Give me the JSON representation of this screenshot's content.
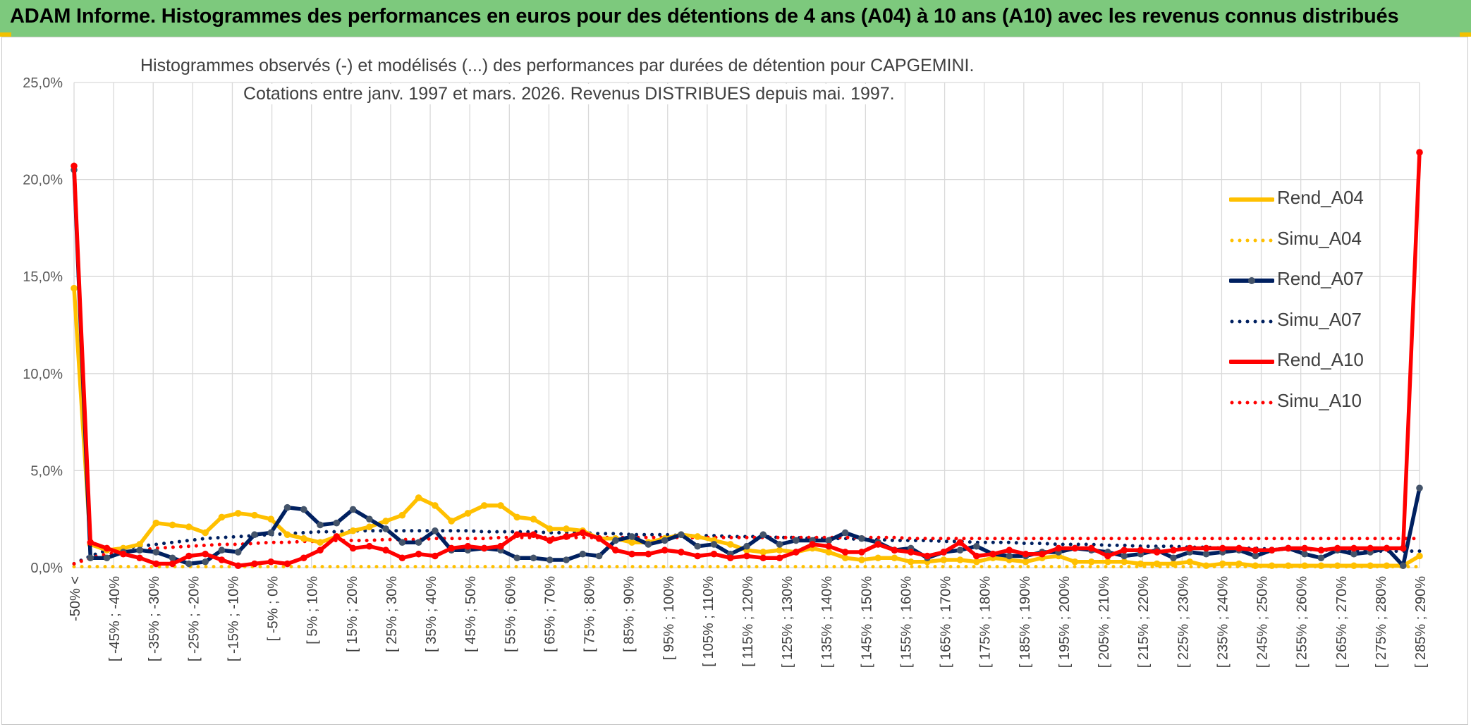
{
  "banner": {
    "title": "ADAM Informe. Histogrammes des performances en euros pour des détentions de 4 ans (A04) à 10 ans (A10) avec les revenus connus distribués"
  },
  "colors": {
    "banner_bg": "#7dc97d",
    "banner_accent": "#f2c100",
    "A04": "#ffc000",
    "A07": "#002060",
    "A07_marker": "#44546a",
    "A10": "#ff0000",
    "grid": "#d9d9d9",
    "text": "#404040"
  },
  "chart_data": {
    "type": "line",
    "title_line1": "Histogrammes observés (-) et modélisés (...) des performances par durées de détention pour CAPGEMINI.",
    "title_line2": "Cotations entre janv. 1997 et mars. 2026. Revenus DISTRIBUES depuis mai. 1997.",
    "ylim": [
      0,
      25
    ],
    "yticks": [
      "0,0%",
      "5,0%",
      "10,0%",
      "15,0%",
      "20,0%",
      "25,0%"
    ],
    "grid": true,
    "legend_position": "right",
    "x_labels": [
      "-50% <",
      "[ -45% ; -40%",
      "[ -35% ; -30%",
      "[ -25% ; -20%",
      "[ -15% ; -10%",
      "[ -5% ; 0%",
      "[ 5% ; 10%",
      "[ 15% ; 20%",
      "[ 25% ; 30%",
      "[ 35% ; 40%",
      "[ 45% ; 50%",
      "[ 55% ; 60%",
      "[ 65% ; 70%",
      "[ 75% ; 80%",
      "[ 85% ; 90%",
      "[ 95% ; 100%",
      "[ 105% ; 110%",
      "[ 115% ; 120%",
      "[ 125% ; 130%",
      "[ 135% ; 140%",
      "[ 145% ; 150%",
      "[ 155% ; 160%",
      "[ 165% ; 170%",
      "[ 175% ; 180%",
      "[ 185% ; 190%",
      "[ 195% ; 200%",
      "[ 205% ; 210%",
      "[ 215% ; 220%",
      "[ 225% ; 230%",
      "[ 235% ; 240%",
      "[ 245% ; 250%",
      "[ 255% ; 260%",
      "[ 265% ; 270%",
      "[ 275% ; 280%",
      "[ 285% ; 290%"
    ],
    "series": [
      {
        "name": "Rend_A04",
        "style": "solid",
        "color": "#ffc000",
        "values": [
          14.4,
          1.2,
          0.9,
          1.0,
          1.2,
          2.3,
          2.2,
          2.1,
          1.8,
          2.6,
          2.8,
          2.7,
          2.5,
          1.7,
          1.5,
          1.3,
          1.6,
          1.9,
          2.1,
          2.4,
          2.7,
          3.6,
          3.2,
          2.4,
          2.8,
          3.2,
          3.2,
          2.6,
          2.5,
          2.0,
          2.0,
          1.9,
          1.5,
          1.5,
          1.3,
          1.3,
          1.5,
          1.7,
          1.6,
          1.4,
          1.2,
          0.9,
          0.8,
          0.9,
          0.8,
          1.0,
          0.8,
          0.5,
          0.4,
          0.5,
          0.5,
          0.3,
          0.3,
          0.4,
          0.4,
          0.3,
          0.5,
          0.4,
          0.3,
          0.5,
          0.6,
          0.3,
          0.3,
          0.3,
          0.3,
          0.2,
          0.2,
          0.2,
          0.3,
          0.1,
          0.2,
          0.2,
          0.1,
          0.1,
          0.1,
          0.1,
          0.1,
          0.1,
          0.1,
          0.1,
          0.1,
          0.1,
          0.6
        ]
      },
      {
        "name": "Simu_A04",
        "style": "dotted",
        "color": "#ffc000",
        "values": [
          0.05,
          0.05,
          0.05,
          0.05,
          0.05,
          0.05,
          0.05,
          0.05,
          0.05,
          0.05,
          0.05,
          0.05,
          0.05,
          0.05,
          0.05,
          0.05,
          0.05,
          0.05,
          0.05,
          0.05,
          0.05,
          0.05,
          0.05,
          0.05,
          0.05,
          0.05,
          0.05,
          0.05,
          0.05,
          0.05,
          0.05,
          0.05,
          0.05,
          0.05,
          0.05,
          0.05,
          0.05,
          0.05,
          0.05,
          0.05,
          0.05,
          0.05,
          0.05,
          0.05,
          0.05,
          0.05,
          0.05,
          0.05,
          0.05,
          0.05,
          0.05,
          0.05,
          0.05,
          0.05,
          0.05,
          0.05,
          0.05,
          0.05,
          0.05,
          0.05,
          0.05,
          0.05,
          0.05,
          0.05,
          0.05,
          0.05,
          0.05,
          0.05,
          0.05,
          0.05,
          0.05,
          0.05,
          0.05,
          0.05,
          0.05,
          0.05,
          0.05,
          0.05,
          0.05,
          0.05,
          0.05,
          0.05,
          0.05
        ]
      },
      {
        "name": "Rend_A07",
        "style": "solid",
        "color": "#002060",
        "values": [
          20.5,
          0.5,
          0.5,
          0.8,
          0.9,
          0.8,
          0.5,
          0.2,
          0.3,
          0.9,
          0.8,
          1.7,
          1.8,
          3.1,
          3.0,
          2.2,
          2.3,
          3.0,
          2.5,
          2.0,
          1.3,
          1.3,
          1.9,
          0.9,
          0.9,
          1.0,
          0.9,
          0.5,
          0.5,
          0.4,
          0.4,
          0.7,
          0.6,
          1.4,
          1.6,
          1.2,
          1.4,
          1.7,
          1.1,
          1.2,
          0.7,
          1.1,
          1.7,
          1.2,
          1.4,
          1.4,
          1.4,
          1.8,
          1.5,
          1.3,
          0.9,
          1.0,
          0.5,
          0.8,
          0.9,
          1.1,
          0.7,
          0.6,
          0.6,
          0.8,
          0.8,
          1.0,
          0.9,
          0.8,
          0.6,
          0.7,
          0.9,
          0.5,
          0.8,
          0.7,
          0.8,
          0.9,
          0.6,
          0.9,
          1.0,
          0.7,
          0.5,
          0.9,
          0.7,
          0.8,
          1.0,
          0.1,
          4.1
        ]
      },
      {
        "name": "Simu_A07",
        "style": "dotted",
        "color": "#002060",
        "values": [
          0.2,
          0.6,
          0.9,
          1.0,
          1.1,
          1.2,
          1.3,
          1.4,
          1.5,
          1.55,
          1.6,
          1.65,
          1.7,
          1.75,
          1.8,
          1.85,
          1.85,
          1.9,
          1.9,
          1.9,
          1.9,
          1.9,
          1.9,
          1.9,
          1.9,
          1.85,
          1.85,
          1.85,
          1.85,
          1.8,
          1.8,
          1.8,
          1.75,
          1.75,
          1.7,
          1.7,
          1.7,
          1.65,
          1.65,
          1.65,
          1.6,
          1.6,
          1.6,
          1.55,
          1.55,
          1.5,
          1.5,
          1.5,
          1.45,
          1.45,
          1.4,
          1.4,
          1.4,
          1.35,
          1.35,
          1.3,
          1.3,
          1.3,
          1.25,
          1.25,
          1.2,
          1.2,
          1.2,
          1.15,
          1.15,
          1.1,
          1.1,
          1.1,
          1.05,
          1.05,
          1.0,
          1.0,
          1.0,
          0.95,
          0.95,
          0.95,
          0.9,
          0.9,
          0.9,
          0.85,
          0.85,
          0.85,
          0.85
        ]
      },
      {
        "name": "Rend_A10",
        "style": "solid",
        "color": "#ff0000",
        "values": [
          20.7,
          1.3,
          1.0,
          0.7,
          0.5,
          0.2,
          0.2,
          0.6,
          0.7,
          0.4,
          0.1,
          0.2,
          0.3,
          0.2,
          0.5,
          0.9,
          1.6,
          1.0,
          1.1,
          0.9,
          0.5,
          0.7,
          0.6,
          1.0,
          1.1,
          1.0,
          1.1,
          1.7,
          1.7,
          1.4,
          1.6,
          1.8,
          1.5,
          0.9,
          0.7,
          0.7,
          0.9,
          0.8,
          0.6,
          0.7,
          0.5,
          0.6,
          0.5,
          0.5,
          0.8,
          1.2,
          1.1,
          0.8,
          0.8,
          1.2,
          0.9,
          0.8,
          0.6,
          0.8,
          1.3,
          0.6,
          0.7,
          0.9,
          0.7,
          0.7,
          1.0,
          1.0,
          1.0,
          0.6,
          0.9,
          0.9,
          0.8,
          0.9,
          1.0,
          1.0,
          1.0,
          1.0,
          0.9,
          0.9,
          1.0,
          1.0,
          0.9,
          1.0,
          1.0,
          1.0,
          1.0,
          1.0,
          21.4
        ]
      },
      {
        "name": "Simu_A10",
        "style": "dotted",
        "color": "#ff0000",
        "values": [
          0.2,
          0.5,
          0.7,
          0.8,
          0.9,
          1.0,
          1.05,
          1.1,
          1.15,
          1.2,
          1.2,
          1.25,
          1.3,
          1.3,
          1.35,
          1.35,
          1.4,
          1.4,
          1.4,
          1.45,
          1.45,
          1.45,
          1.5,
          1.5,
          1.5,
          1.5,
          1.55,
          1.55,
          1.55,
          1.55,
          1.55,
          1.55,
          1.55,
          1.55,
          1.55,
          1.55,
          1.55,
          1.55,
          1.55,
          1.55,
          1.55,
          1.55,
          1.55,
          1.55,
          1.55,
          1.55,
          1.55,
          1.55,
          1.55,
          1.55,
          1.55,
          1.5,
          1.5,
          1.5,
          1.5,
          1.5,
          1.5,
          1.5,
          1.5,
          1.5,
          1.5,
          1.5,
          1.5,
          1.5,
          1.5,
          1.5,
          1.5,
          1.5,
          1.5,
          1.5,
          1.5,
          1.5,
          1.5,
          1.5,
          1.5,
          1.5,
          1.5,
          1.5,
          1.5,
          1.5,
          1.5,
          1.5,
          1.5
        ]
      }
    ]
  }
}
